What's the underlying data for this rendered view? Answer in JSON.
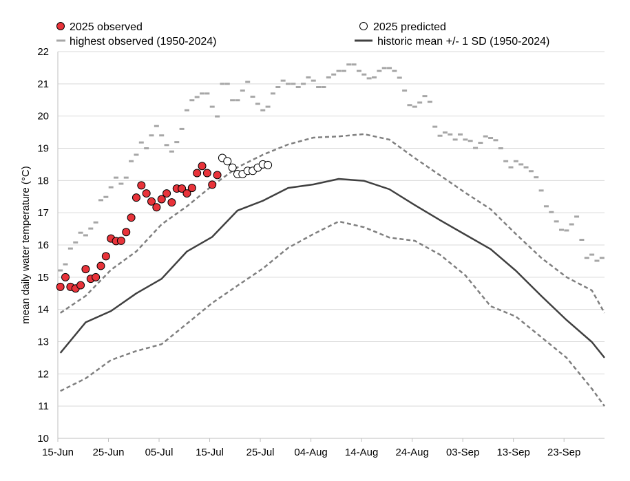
{
  "chart_data": {
    "type": "scatter",
    "title": "",
    "xlabel": "",
    "ylabel": "mean daily water temperature (°C)",
    "ylim": [
      10,
      22
    ],
    "yticks": [
      10,
      11,
      12,
      13,
      14,
      15,
      16,
      17,
      18,
      19,
      20,
      21,
      22
    ],
    "xlim_days": [
      0,
      108
    ],
    "xticks": [
      {
        "day": 0,
        "label": "15-Jun"
      },
      {
        "day": 10,
        "label": "25-Jun"
      },
      {
        "day": 20,
        "label": "05-Jul"
      },
      {
        "day": 30,
        "label": "15-Jul"
      },
      {
        "day": 40,
        "label": "25-Jul"
      },
      {
        "day": 50,
        "label": "04-Aug"
      },
      {
        "day": 60,
        "label": "14-Aug"
      },
      {
        "day": 70,
        "label": "24-Aug"
      },
      {
        "day": 80,
        "label": "03-Sep"
      },
      {
        "day": 90,
        "label": "13-Sep"
      },
      {
        "day": 100,
        "label": "23-Sep"
      }
    ],
    "grid": "horizontal",
    "legend_placement": "top",
    "legend": {
      "observed": "2025 observed",
      "predicted": "2025 predicted",
      "highest": "highest observed (1950-2024)",
      "mean_sd": "historic mean +/- 1 SD (1950-2024)"
    },
    "colors": {
      "observed": "#e8333a",
      "highest": "#a6a6a6",
      "sd": "#7f7f7f",
      "mean": "#404040",
      "grid": "#d9d9d9"
    },
    "observed_2025": {
      "start_day": 0,
      "values": [
        14.7,
        15.0,
        14.7,
        14.65,
        14.75,
        15.25,
        14.95,
        15.0,
        15.35,
        15.65,
        16.2,
        16.12,
        16.13,
        16.4,
        16.85,
        17.47,
        17.85,
        17.6,
        17.35,
        17.17,
        17.42,
        17.6,
        17.32,
        17.75,
        17.75,
        17.6,
        17.77,
        18.23,
        18.45,
        18.23,
        17.87,
        18.17
      ]
    },
    "predicted_2025": {
      "start_day": 32,
      "values": [
        18.7,
        18.6,
        18.4,
        18.2,
        18.2,
        18.3,
        18.3,
        18.4,
        18.5,
        18.48
      ]
    },
    "highest_observed": {
      "start_day": 0,
      "values": [
        15.21,
        15.4,
        15.89,
        16.08,
        16.38,
        16.3,
        16.51,
        16.7,
        17.39,
        17.49,
        17.79,
        18.09,
        17.9,
        18.09,
        18.6,
        18.8,
        19.18,
        19.0,
        19.4,
        19.69,
        19.4,
        19.1,
        18.9,
        19.19,
        19.6,
        20.18,
        20.49,
        20.59,
        20.7,
        20.7,
        20.29,
        19.99,
        21.0,
        21.0,
        20.49,
        20.49,
        20.79,
        21.06,
        20.6,
        20.38,
        20.18,
        20.29,
        20.7,
        20.9,
        21.1,
        21.0,
        21.0,
        20.9,
        21.0,
        21.2,
        21.1,
        20.9,
        20.9,
        21.2,
        21.29,
        21.4,
        21.4,
        21.6,
        21.6,
        21.4,
        21.29,
        21.17,
        21.2,
        21.4,
        21.49,
        21.49,
        21.4,
        21.19,
        20.79,
        20.34,
        20.29,
        20.42,
        20.62,
        20.44,
        19.67,
        19.39,
        19.49,
        19.43,
        19.27,
        19.43,
        19.27,
        19.23,
        19.01,
        19.17,
        19.37,
        19.32,
        19.25,
        19.0,
        18.6,
        18.41,
        18.6,
        18.5,
        18.41,
        18.29,
        18.1,
        17.69,
        17.2,
        17.02,
        16.73,
        16.47,
        16.45,
        16.64,
        16.88,
        16.16,
        15.6,
        15.7,
        15.51,
        15.6
      ]
    },
    "historic_mean": {
      "days": [
        0,
        5,
        10,
        15,
        20,
        25,
        30,
        35,
        40,
        45,
        50,
        55,
        60,
        65,
        70,
        75,
        80,
        85,
        90,
        95,
        100,
        105,
        107.5
      ],
      "values": [
        12.65,
        13.6,
        13.95,
        14.5,
        14.95,
        15.8,
        16.25,
        17.07,
        17.37,
        17.77,
        17.88,
        18.05,
        17.99,
        17.73,
        17.24,
        16.77,
        16.32,
        15.87,
        15.2,
        14.42,
        13.67,
        12.99,
        12.5
      ]
    },
    "mean_plus_1sd": {
      "days": [
        0,
        5,
        10,
        15,
        20,
        25,
        30,
        35,
        40,
        45,
        50,
        55,
        60,
        65,
        70,
        75,
        80,
        85,
        90,
        95,
        100,
        105,
        107.5
      ],
      "values": [
        13.89,
        14.42,
        15.23,
        15.8,
        16.64,
        17.2,
        17.84,
        18.41,
        18.8,
        19.12,
        19.33,
        19.37,
        19.44,
        19.27,
        18.7,
        18.16,
        17.62,
        17.11,
        16.34,
        15.6,
        15.0,
        14.59,
        13.89
      ]
    },
    "mean_minus_1sd": {
      "days": [
        0,
        5,
        10,
        15,
        20,
        25,
        30,
        35,
        40,
        45,
        50,
        55,
        60,
        65,
        70,
        75,
        80,
        85,
        90,
        95,
        100,
        105,
        107.5
      ],
      "values": [
        11.47,
        11.86,
        12.43,
        12.71,
        12.92,
        13.56,
        14.2,
        14.74,
        15.27,
        15.91,
        16.34,
        16.73,
        16.55,
        16.23,
        16.13,
        15.7,
        15.06,
        14.1,
        13.78,
        13.14,
        12.5,
        11.54,
        11.0
      ]
    }
  }
}
